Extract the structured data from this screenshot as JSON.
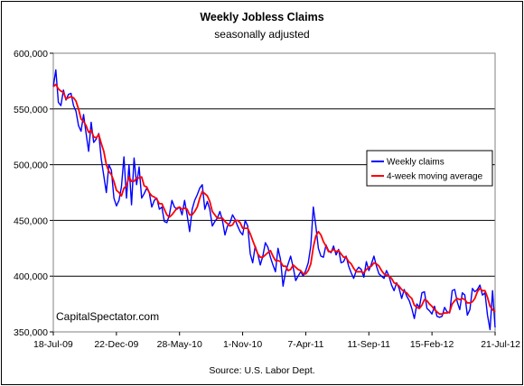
{
  "chart_data": {
    "type": "line",
    "title": "Weekly Jobless Claims",
    "subtitle": "seasonally adjusted",
    "source": "Source: U.S. Labor Dept.",
    "annotation": "CapitalSpectator.com",
    "x_tick_labels": [
      "18-Jul-09",
      "22-Dec-09",
      "28-May-10",
      "1-Nov-10",
      "7-Apr-11",
      "11-Sep-11",
      "15-Feb-12",
      "21-Jul-12"
    ],
    "y_tick_labels": [
      "350,000",
      "400,000",
      "450,000",
      "500,000",
      "550,000",
      "600,000"
    ],
    "ylim": [
      350000,
      600000
    ],
    "xlim": [
      "18-Jul-09",
      "21-Jul-12"
    ],
    "grid": "horizontal",
    "legend_position": "right",
    "series": [
      {
        "name": "Weekly claims",
        "color": "#0000ff",
        "values": [
          570000,
          585000,
          556000,
          553000,
          567000,
          558000,
          563000,
          564000,
          553000,
          548000,
          535000,
          530000,
          545000,
          528000,
          512000,
          538000,
          520000,
          523000,
          528000,
          505000,
          490000,
          475000,
          500000,
          495000,
          470000,
          463000,
          468000,
          480000,
          507000,
          470000,
          500000,
          464000,
          506000,
          482000,
          498000,
          470000,
          474000,
          479000,
          475000,
          462000,
          468000,
          470000,
          460000,
          462000,
          449000,
          448000,
          455000,
          468000,
          462000,
          460000,
          462000,
          455000,
          468000,
          455000,
          440000,
          460000,
          468000,
          473000,
          479000,
          482000,
          460000,
          467000,
          460000,
          445000,
          449000,
          452000,
          458000,
          450000,
          437000,
          445000,
          448000,
          455000,
          451000,
          445000,
          440000,
          437000,
          450000,
          445000,
          420000,
          412000,
          427000,
          420000,
          410000,
          418000,
          430000,
          426000,
          417000,
          410000,
          404000,
          425000,
          415000,
          391000,
          404000,
          411000,
          418000,
          408000,
          396000,
          400000,
          404000,
          400000,
          405000,
          412000,
          427000,
          462000,
          445000,
          425000,
          418000,
          417000,
          428000,
          423000,
          421000,
          427000,
          419000,
          424000,
          412000,
          413000,
          418000,
          409000,
          403000,
          398000,
          405000,
          408000,
          406000,
          399000,
          413000,
          405000,
          411000,
          418000,
          409000,
          402000,
          400000,
          398000,
          405000,
          400000,
          392000,
          387000,
          394000,
          389000,
          380000,
          388000,
          382000,
          378000,
          371000,
          362000,
          375000,
          372000,
          385000,
          386000,
          371000,
          369000,
          366000,
          373000,
          364000,
          363000,
          364000,
          372000,
          368000,
          367000,
          387000,
          388000,
          377000,
          370000,
          385000,
          383000,
          365000,
          370000,
          389000,
          386000,
          388000,
          392000,
          383000,
          385000,
          365000,
          352000,
          387000,
          354000
        ]
      },
      {
        "name": "4-week moving average",
        "color": "#ff0000",
        "values": [
          570000,
          572000,
          568000,
          566000,
          565000,
          559000,
          560000,
          561000,
          560000,
          557000,
          550000,
          541000,
          539000,
          535000,
          529000,
          531000,
          525000,
          524000,
          527000,
          519000,
          512000,
          500000,
          494000,
          491000,
          485000,
          477000,
          475000,
          472000,
          479000,
          481000,
          489000,
          485000,
          485000,
          488000,
          488000,
          489000,
          481000,
          480000,
          475000,
          472000,
          471000,
          469000,
          465000,
          465000,
          460000,
          455000,
          453000,
          455000,
          458000,
          461000,
          462000,
          460000,
          461000,
          460000,
          455000,
          455000,
          458000,
          462000,
          470000,
          476000,
          474000,
          472000,
          467000,
          458000,
          455000,
          452000,
          452000,
          452000,
          449000,
          447000,
          445000,
          446000,
          450000,
          450000,
          448000,
          443000,
          443000,
          443000,
          438000,
          432000,
          426000,
          420000,
          417000,
          417000,
          419000,
          421000,
          423000,
          418000,
          414000,
          414000,
          413000,
          409000,
          409000,
          405000,
          406000,
          410000,
          408000,
          406000,
          405000,
          402000,
          402000,
          405000,
          411000,
          426000,
          436000,
          440000,
          437000,
          431000,
          427000,
          422000,
          422000,
          424000,
          422000,
          423000,
          420000,
          417000,
          417000,
          413000,
          411000,
          407000,
          404000,
          404000,
          404000,
          403000,
          406000,
          408000,
          409000,
          412000,
          411000,
          409000,
          405000,
          402000,
          401000,
          400000,
          398000,
          394000,
          393000,
          391000,
          388000,
          386000,
          385000,
          382000,
          380000,
          374000,
          372000,
          371000,
          374000,
          379000,
          378000,
          375000,
          373000,
          370000,
          368000,
          366000,
          366000,
          367000,
          367000,
          368000,
          375000,
          378000,
          380000,
          379000,
          380000,
          379000,
          376000,
          376000,
          377000,
          380000,
          386000,
          389000,
          387000,
          387000,
          381000,
          373000,
          370000,
          368000
        ]
      }
    ]
  }
}
